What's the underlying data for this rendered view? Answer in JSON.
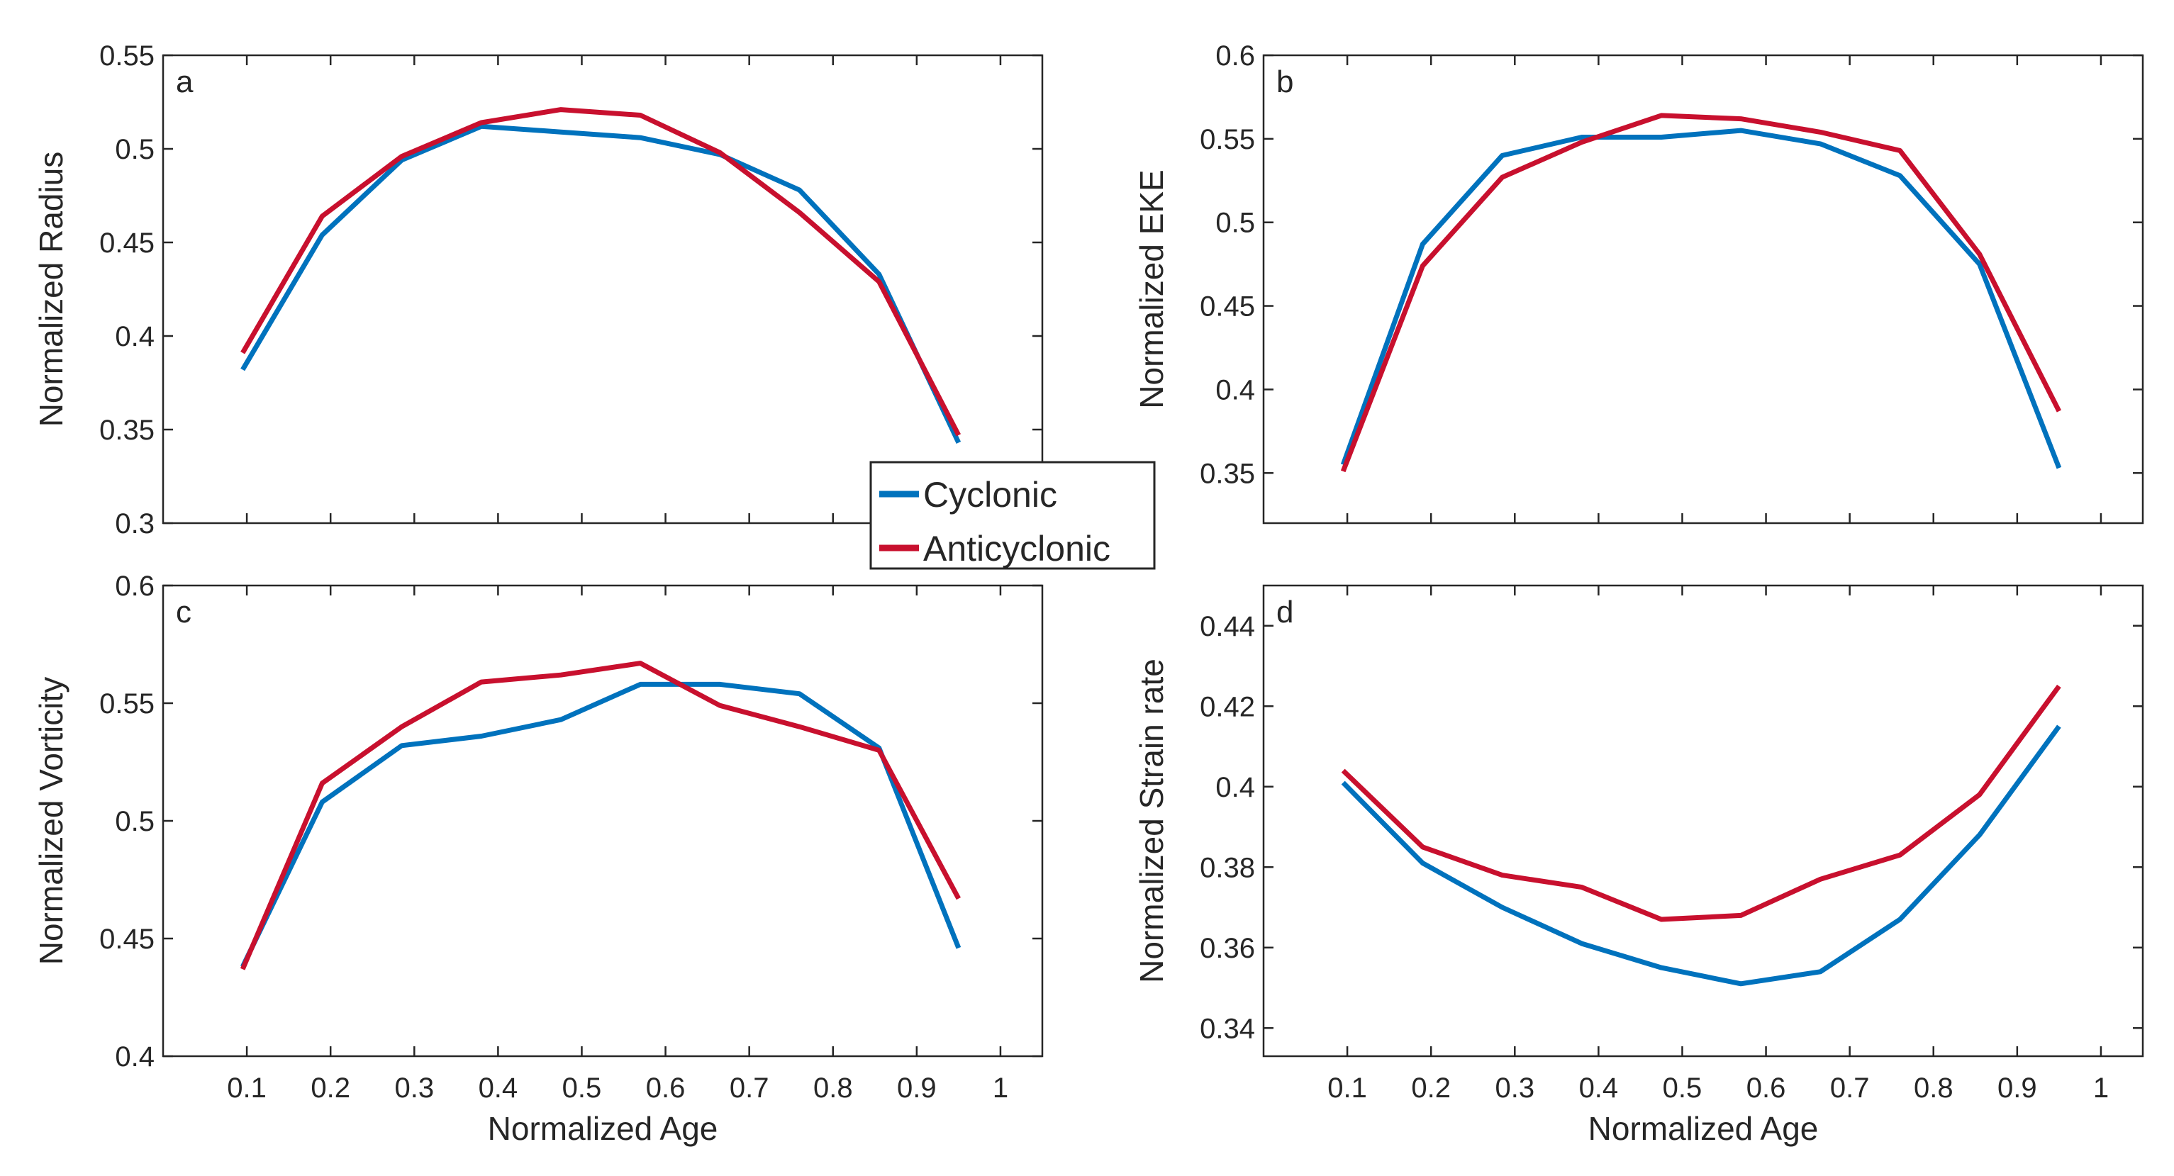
{
  "legend": {
    "entries": [
      {
        "name": "Cyclonic",
        "color": "#0072BD"
      },
      {
        "name": "Anticyclonic",
        "color": "#C8102E"
      }
    ]
  },
  "chart_data": [
    {
      "type": "line",
      "panel": "a",
      "xlabel": "",
      "ylabel": "Normalized Radius",
      "xlim": [
        0,
        1.05
      ],
      "ylim": [
        0.3,
        0.55
      ],
      "xticks": [
        0.1,
        0.2,
        0.3,
        0.4,
        0.5,
        0.6,
        0.7,
        0.8,
        0.9,
        1
      ],
      "xtick_labels": [],
      "yticks": [
        0.3,
        0.35,
        0.4,
        0.45,
        0.5,
        0.55
      ],
      "ytick_labels": [
        "0.3",
        "0.35",
        "0.4",
        "0.45",
        "0.5",
        "0.55"
      ],
      "x": [
        0.095,
        0.19,
        0.285,
        0.38,
        0.475,
        0.57,
        0.665,
        0.76,
        0.855,
        0.95
      ],
      "series": [
        {
          "name": "Cyclonic",
          "color": "#0072BD",
          "values": [
            0.382,
            0.454,
            0.494,
            0.512,
            0.509,
            0.506,
            0.497,
            0.478,
            0.433,
            0.343
          ]
        },
        {
          "name": "Anticyclonic",
          "color": "#C8102E",
          "values": [
            0.391,
            0.464,
            0.496,
            0.514,
            0.521,
            0.518,
            0.498,
            0.466,
            0.429,
            0.347
          ]
        }
      ]
    },
    {
      "type": "line",
      "panel": "b",
      "xlabel": "",
      "ylabel": "Normalized EKE",
      "xlim": [
        0,
        1.05
      ],
      "ylim": [
        0.32,
        0.6
      ],
      "xticks": [
        0.1,
        0.2,
        0.3,
        0.4,
        0.5,
        0.6,
        0.7,
        0.8,
        0.9,
        1
      ],
      "xtick_labels": [],
      "yticks": [
        0.35,
        0.4,
        0.45,
        0.5,
        0.55,
        0.6
      ],
      "ytick_labels": [
        "0.35",
        "0.4",
        "0.45",
        "0.5",
        "0.55",
        "0.6"
      ],
      "x": [
        0.095,
        0.19,
        0.285,
        0.38,
        0.475,
        0.57,
        0.665,
        0.76,
        0.855,
        0.95
      ],
      "series": [
        {
          "name": "Cyclonic",
          "color": "#0072BD",
          "values": [
            0.355,
            0.487,
            0.54,
            0.551,
            0.551,
            0.555,
            0.547,
            0.528,
            0.475,
            0.353
          ]
        },
        {
          "name": "Anticyclonic",
          "color": "#C8102E",
          "values": [
            0.351,
            0.474,
            0.527,
            0.548,
            0.564,
            0.562,
            0.554,
            0.543,
            0.481,
            0.387
          ]
        }
      ]
    },
    {
      "type": "line",
      "panel": "c",
      "xlabel": "Normalized Age",
      "ylabel": "Normalized Vorticity",
      "xlim": [
        0,
        1.05
      ],
      "ylim": [
        0.4,
        0.6
      ],
      "xticks": [
        0.1,
        0.2,
        0.3,
        0.4,
        0.5,
        0.6,
        0.7,
        0.8,
        0.9,
        1
      ],
      "xtick_labels": [
        "0.1",
        "0.2",
        "0.3",
        "0.4",
        "0.5",
        "0.6",
        "0.7",
        "0.8",
        "0.9",
        "1"
      ],
      "yticks": [
        0.4,
        0.45,
        0.5,
        0.55,
        0.6
      ],
      "ytick_labels": [
        "0.4",
        "0.45",
        "0.5",
        "0.55",
        "0.6"
      ],
      "x": [
        0.095,
        0.19,
        0.285,
        0.38,
        0.475,
        0.57,
        0.665,
        0.76,
        0.855,
        0.95
      ],
      "series": [
        {
          "name": "Cyclonic",
          "color": "#0072BD",
          "values": [
            0.438,
            0.508,
            0.532,
            0.536,
            0.543,
            0.558,
            0.558,
            0.554,
            0.531,
            0.446
          ]
        },
        {
          "name": "Anticyclonic",
          "color": "#C8102E",
          "values": [
            0.437,
            0.516,
            0.54,
            0.559,
            0.562,
            0.567,
            0.549,
            0.54,
            0.53,
            0.467
          ]
        }
      ]
    },
    {
      "type": "line",
      "panel": "d",
      "xlabel": "Normalized Age",
      "ylabel": "Normalized Strain rate",
      "xlim": [
        0,
        1.05
      ],
      "ylim": [
        0.333,
        0.45
      ],
      "xticks": [
        0.1,
        0.2,
        0.3,
        0.4,
        0.5,
        0.6,
        0.7,
        0.8,
        0.9,
        1
      ],
      "xtick_labels": [
        "0.1",
        "0.2",
        "0.3",
        "0.4",
        "0.5",
        "0.6",
        "0.7",
        "0.8",
        "0.9",
        "1"
      ],
      "yticks": [
        0.34,
        0.36,
        0.38,
        0.4,
        0.42,
        0.44
      ],
      "ytick_labels": [
        "0.34",
        "0.36",
        "0.38",
        "0.4",
        "0.42",
        "0.44"
      ],
      "x": [
        0.095,
        0.19,
        0.285,
        0.38,
        0.475,
        0.57,
        0.665,
        0.76,
        0.855,
        0.95
      ],
      "series": [
        {
          "name": "Cyclonic",
          "color": "#0072BD",
          "values": [
            0.401,
            0.381,
            0.37,
            0.361,
            0.355,
            0.351,
            0.354,
            0.367,
            0.388,
            0.415
          ]
        },
        {
          "name": "Anticyclonic",
          "color": "#C8102E",
          "values": [
            0.404,
            0.385,
            0.378,
            0.375,
            0.367,
            0.368,
            0.377,
            0.383,
            0.398,
            0.425
          ]
        }
      ]
    }
  ]
}
